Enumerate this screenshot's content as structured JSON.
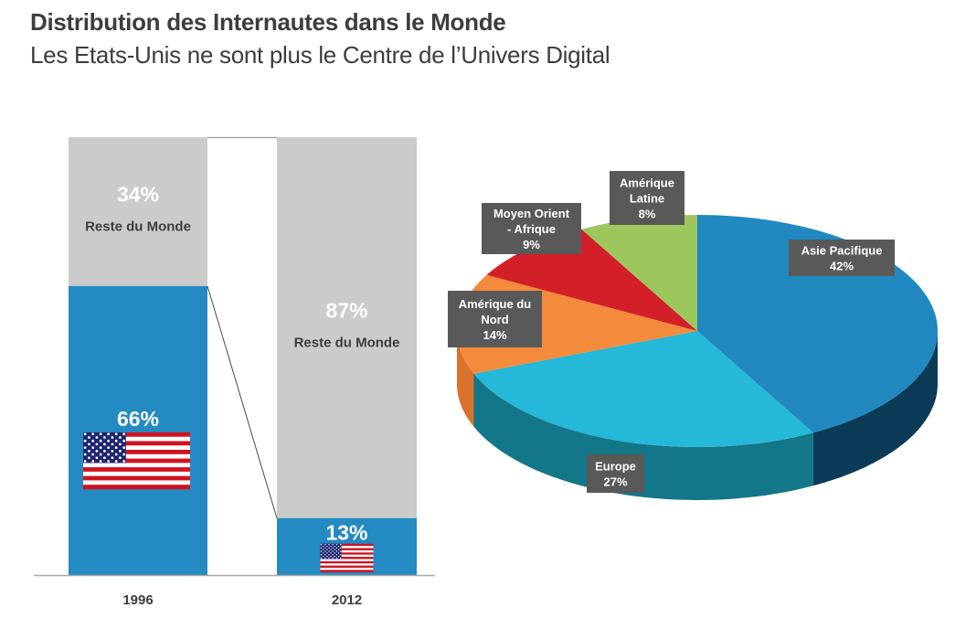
{
  "header": {
    "title": "Distribution des Internautes dans le Monde",
    "subtitle": "Les Etats-Unis ne sont plus le Centre de l’Univers Digital"
  },
  "chart_data": [
    {
      "type": "bar",
      "stacked": true,
      "normalized": true,
      "categories": [
        "1996",
        "2012"
      ],
      "series": [
        {
          "name": "Etats-Unis",
          "values": [
            66,
            13
          ],
          "color": "#248ac2",
          "labels": [
            "66%",
            "13%"
          ],
          "icon": "us-flag"
        },
        {
          "name": "Reste du Monde",
          "values": [
            34,
            87
          ],
          "color": "#cbcbcb",
          "labels": [
            "34%",
            "87%"
          ],
          "sublabel": "Reste du Monde"
        }
      ],
      "ylim": [
        0,
        100
      ],
      "grid": false,
      "legend": "none"
    },
    {
      "type": "pie",
      "style": "3d",
      "start": "top",
      "direction": "clockwise",
      "slices": [
        {
          "label": "Asie Pacifique",
          "value": 42,
          "text": [
            "Asie Pacifique",
            "42%"
          ],
          "color": "#2189c0",
          "side_color": "#0b3b57"
        },
        {
          "label": "Europe",
          "value": 27,
          "text": [
            "Europe",
            "27%"
          ],
          "color": "#25b8d8",
          "side_color": "#137789"
        },
        {
          "label": "Amérique du Nord",
          "value": 14,
          "text": [
            "Amérique du",
            "Nord",
            "14%"
          ],
          "color": "#f48a3c",
          "side_color": "#d9722c"
        },
        {
          "label": "Moyen Orient - Afrique",
          "value": 9,
          "text": [
            "Moyen Orient",
            "- Afrique",
            "9%"
          ],
          "color": "#d31f27",
          "side_color": "#a3161c"
        },
        {
          "label": "Amérique Latine",
          "value": 8,
          "text": [
            "Amérique",
            "Latine",
            "8%"
          ],
          "color": "#9dc75d",
          "side_color": "#7ea345"
        }
      ],
      "legend": "none"
    }
  ]
}
